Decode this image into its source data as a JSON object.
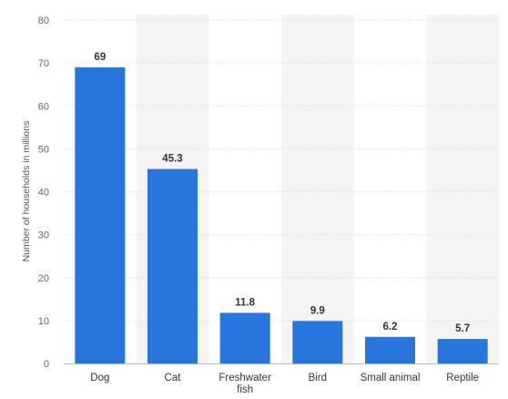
{
  "chart_data": {
    "type": "bar",
    "categories": [
      "Dog",
      "Cat",
      "Freshwater fish",
      "Bird",
      "Small animal",
      "Reptile"
    ],
    "category_lines": [
      [
        "Dog"
      ],
      [
        "Cat"
      ],
      [
        "Freshwater",
        "fish"
      ],
      [
        "Bird"
      ],
      [
        "Small animal"
      ],
      [
        "Reptile"
      ]
    ],
    "values": [
      69,
      45.3,
      11.8,
      9.9,
      6.2,
      5.7
    ],
    "data_labels": [
      "69",
      "45.3",
      "11.8",
      "9.9",
      "6.2",
      "5.7"
    ],
    "title": "",
    "xlabel": "",
    "ylabel": "Number of households in millions",
    "ylim": [
      0,
      80
    ],
    "yticks": [
      0,
      10,
      20,
      30,
      40,
      50,
      60,
      70,
      80
    ],
    "grid": true,
    "alternating_column_shading": true,
    "legend": "none",
    "colors": {
      "bar": "#2876dd",
      "shade": "#f4f4f4",
      "grid": "#d9d9d9",
      "axis": "#bbbbbb"
    }
  }
}
